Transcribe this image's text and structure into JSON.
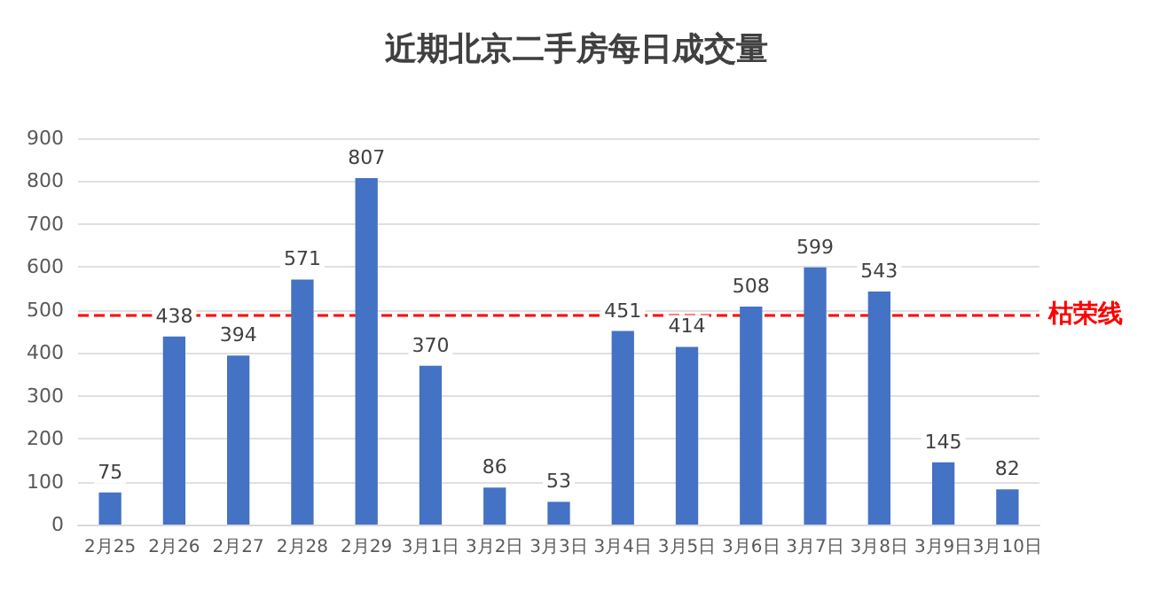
{
  "chart_data": {
    "type": "bar",
    "title": "近期北京二手房每日成交量",
    "categories": [
      "2月25",
      "2月26",
      "2月27",
      "2月28",
      "2月29",
      "3月1日",
      "3月2日",
      "3月3日",
      "3月4日",
      "3月5日",
      "3月6日",
      "3月7日",
      "3月8日",
      "3月9日",
      "3月10日"
    ],
    "values": [
      75,
      438,
      394,
      571,
      807,
      370,
      86,
      53,
      451,
      414,
      508,
      599,
      543,
      145,
      82
    ],
    "color": "#4472c4",
    "ylim": [
      0,
      900
    ],
    "yticks": [
      0,
      100,
      200,
      300,
      400,
      500,
      600,
      700,
      800,
      900
    ],
    "grid": "y",
    "data_labels": true,
    "ref_lines": [
      {
        "axis": "y",
        "value": 490,
        "label": "枯荣线",
        "color": "#ff0000",
        "line_style": "dashed"
      }
    ]
  }
}
